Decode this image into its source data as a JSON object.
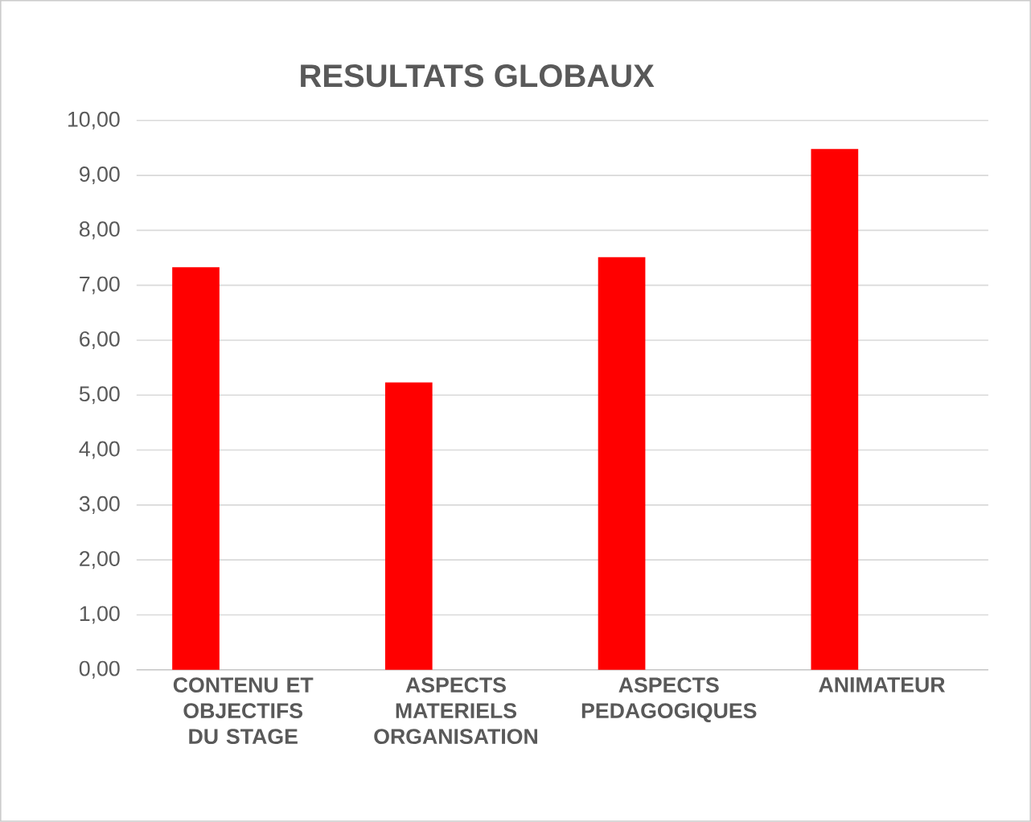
{
  "chart_data": {
    "type": "bar",
    "title": "RESULTATS GLOBAUX",
    "categories": [
      "CONTENU ET OBJECTIFS DU STAGE",
      "ASPECTS MATERIELS ORGANISATION",
      "ASPECTS PEDAGOGIQUES",
      "ANIMATEUR"
    ],
    "values": [
      7.33,
      5.23,
      7.51,
      9.48
    ],
    "color": "#ff0000",
    "ylim": [
      0,
      10
    ],
    "yticks": [
      {
        "value": 0,
        "label": "0,00"
      },
      {
        "value": 1,
        "label": "1,00"
      },
      {
        "value": 2,
        "label": "2,00"
      },
      {
        "value": 3,
        "label": "3,00"
      },
      {
        "value": 4,
        "label": "4,00"
      },
      {
        "value": 5,
        "label": "5,00"
      },
      {
        "value": 6,
        "label": "6,00"
      },
      {
        "value": 7,
        "label": "7,00"
      },
      {
        "value": 8,
        "label": "8,00"
      },
      {
        "value": 9,
        "label": "9,00"
      },
      {
        "value": 10,
        "label": "10,00"
      }
    ],
    "grid": "y"
  }
}
